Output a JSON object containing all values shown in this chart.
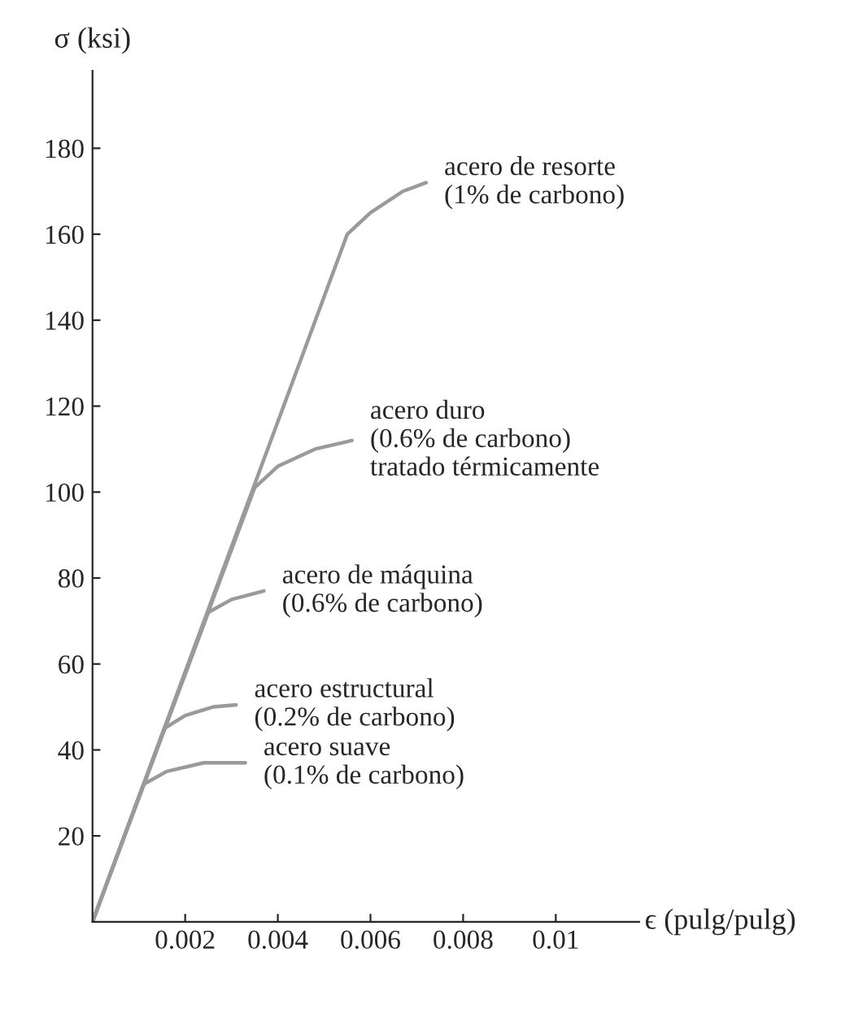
{
  "chart_data": {
    "type": "line",
    "xlabel": "ϵ (pulg/pulg)",
    "ylabel": "σ (ksi)",
    "xlim": [
      0,
      0.0118
    ],
    "ylim": [
      0,
      198
    ],
    "xticks": [
      0.002,
      0.004,
      0.006,
      0.008,
      0.01
    ],
    "yticks": [
      20,
      40,
      60,
      80,
      100,
      120,
      140,
      160,
      180
    ],
    "grid": false,
    "legend": false,
    "line_style": "solid",
    "marker": "none",
    "series": [
      {
        "color": "#9a9a9a",
        "x": [
          0,
          0.0011,
          0.0016,
          0.0024,
          0.0033
        ],
        "values": [
          0,
          32,
          35,
          37,
          37
        ]
      },
      {
        "color": "#9a9a9a",
        "x": [
          0,
          0.00155,
          0.002,
          0.0026,
          0.0031
        ],
        "values": [
          0,
          45,
          48,
          50,
          50.5
        ]
      },
      {
        "color": "#9a9a9a",
        "x": [
          0,
          0.0025,
          0.003,
          0.0037
        ],
        "values": [
          0,
          72,
          75,
          77
        ]
      },
      {
        "color": "#9a9a9a",
        "x": [
          0,
          0.0035,
          0.004,
          0.0048,
          0.0056
        ],
        "values": [
          0,
          101,
          106,
          110,
          112
        ]
      },
      {
        "color": "#9a9a9a",
        "x": [
          0,
          0.0055,
          0.006,
          0.0067,
          0.0072
        ],
        "values": [
          0,
          160,
          165,
          170,
          172
        ]
      }
    ],
    "annotations": [
      {
        "text": "acero suave\n(0.1% de carbono)",
        "x": 0.0033,
        "y": 37
      },
      {
        "text": "acero estructural\n(0.2% de carbono)",
        "x": 0.0031,
        "y": 50.5
      },
      {
        "text": "acero de máquina\n(0.6% de carbono)",
        "x": 0.0037,
        "y": 77
      },
      {
        "text": "acero duro\n(0.6% de carbono)\ntratado térmicamente",
        "x": 0.0056,
        "y": 112
      },
      {
        "text": "acero de resorte\n(1% de carbono)",
        "x": 0.0072,
        "y": 172
      }
    ]
  }
}
